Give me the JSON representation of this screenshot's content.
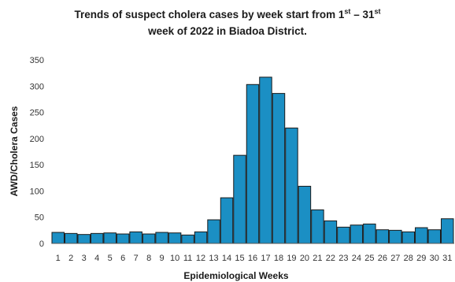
{
  "chart_data": {
    "type": "bar",
    "title_line1_a": "Trends of suspect cholera cases by week start from 1",
    "title_sup1": "st",
    "title_line1_b": " – 31",
    "title_sup2": "st",
    "title_line2": "week of 2022 in Biadoa District.",
    "xlabel": "Epidemiological Weeks",
    "ylabel": "AWD/Cholera Cases",
    "ylim": [
      0,
      350
    ],
    "yticks": [
      0,
      50,
      100,
      150,
      200,
      250,
      300,
      350
    ],
    "categories": [
      "1",
      "2",
      "3",
      "4",
      "5",
      "6",
      "7",
      "8",
      "9",
      "10",
      "11",
      "12",
      "13",
      "14",
      "15",
      "16",
      "17",
      "18",
      "19",
      "20",
      "21",
      "22",
      "23",
      "24",
      "25",
      "26",
      "27",
      "28",
      "29",
      "30",
      "31"
    ],
    "values": [
      21,
      19,
      17,
      19,
      20,
      18,
      22,
      18,
      21,
      20,
      16,
      22,
      45,
      87,
      168,
      303,
      317,
      286,
      220,
      109,
      64,
      43,
      31,
      35,
      37,
      26,
      25,
      22,
      30,
      26,
      47
    ],
    "grid": false,
    "legend": "none",
    "bar_color": "#1b8fc4",
    "bar_edge_color": "#1a1a1a"
  }
}
